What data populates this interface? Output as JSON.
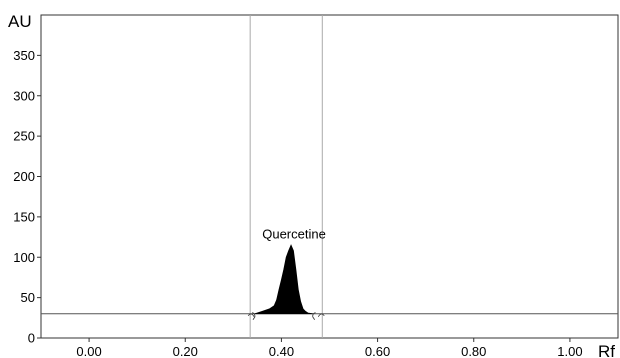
{
  "chart_data": {
    "type": "area",
    "title": "",
    "xlabel": "Rf",
    "ylabel": "AU",
    "xlim": [
      -0.1,
      1.1
    ],
    "ylim": [
      0,
      400
    ],
    "x_ticks": [
      "0.00",
      "0.20",
      "0.40",
      "0.60",
      "0.80",
      "1.00"
    ],
    "x_tick_values": [
      0.0,
      0.2,
      0.4,
      0.6,
      0.8,
      1.0
    ],
    "y_ticks": [
      "0",
      "50",
      "100",
      "150",
      "200",
      "250",
      "300",
      "350"
    ],
    "y_tick_values": [
      0,
      50,
      100,
      150,
      200,
      250,
      300,
      350
    ],
    "baseline": 30,
    "grid": false,
    "integration_limits": [
      0.335,
      0.485
    ],
    "peak_bounds": [
      0.345,
      0.465
    ],
    "series": [
      {
        "name": "",
        "x": [
          0.345,
          0.36,
          0.375,
          0.385,
          0.39,
          0.395,
          0.4,
          0.405,
          0.41,
          0.415,
          0.42,
          0.425,
          0.43,
          0.435,
          0.44,
          0.445,
          0.45,
          0.455,
          0.465
        ],
        "y": [
          30,
          33,
          36,
          40,
          47,
          60,
          72,
          85,
          100,
          108,
          115,
          108,
          85,
          60,
          45,
          36,
          33,
          31,
          30
        ]
      }
    ],
    "annotations": [
      {
        "text": "Quercetine",
        "x": 0.42,
        "y": 116
      }
    ]
  }
}
